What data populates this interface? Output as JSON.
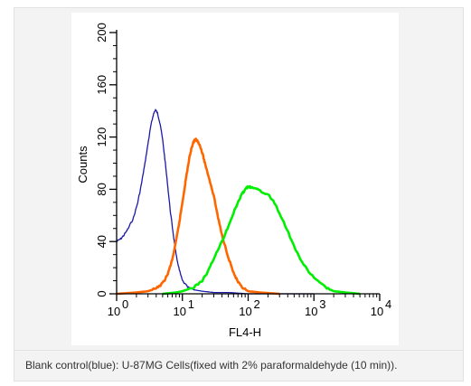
{
  "caption": "Blank control(blue): U-87MG Cells(fixed with 2% paraformaldehyde (10 min)).",
  "chart_data": {
    "type": "line",
    "title": "",
    "xlabel": "FL4-H",
    "ylabel": "Counts",
    "xscale": "log",
    "xlim": [
      1,
      10000
    ],
    "ylim": [
      0,
      200
    ],
    "grid": false,
    "legend": "none",
    "x_ticks": [
      {
        "base": "10",
        "exp": "0",
        "value": 1
      },
      {
        "base": "10",
        "exp": "1",
        "value": 10
      },
      {
        "base": "10",
        "exp": "2",
        "value": 100
      },
      {
        "base": "10",
        "exp": "3",
        "value": 1000
      },
      {
        "base": "10",
        "exp": "4",
        "value": 10000
      }
    ],
    "y_ticks": [
      "0",
      "40",
      "80",
      "120",
      "160",
      "200"
    ],
    "series": [
      {
        "color": "#1a1aa8",
        "points": [
          [
            1,
            40
          ],
          [
            1.15,
            42
          ],
          [
            1.3,
            45
          ],
          [
            1.5,
            50
          ],
          [
            1.8,
            58
          ],
          [
            2.1,
            70
          ],
          [
            2.4,
            85
          ],
          [
            2.7,
            100
          ],
          [
            3.0,
            115
          ],
          [
            3.3,
            128
          ],
          [
            3.6,
            137
          ],
          [
            3.9,
            141
          ],
          [
            4.2,
            138
          ],
          [
            4.6,
            130
          ],
          [
            5.0,
            118
          ],
          [
            5.5,
            100
          ],
          [
            6.0,
            82
          ],
          [
            6.6,
            62
          ],
          [
            7.3,
            45
          ],
          [
            8.0,
            30
          ],
          [
            9.0,
            18
          ],
          [
            10,
            10
          ],
          [
            12,
            5
          ],
          [
            15,
            3
          ],
          [
            20,
            2
          ],
          [
            30,
            1
          ],
          [
            50,
            1
          ],
          [
            100,
            0
          ],
          [
            300,
            0
          ],
          [
            1000,
            0
          ]
        ]
      },
      {
        "color": "#ff6600",
        "points": [
          [
            1,
            0
          ],
          [
            2,
            1
          ],
          [
            3,
            2
          ],
          [
            4,
            4
          ],
          [
            5,
            8
          ],
          [
            6,
            15
          ],
          [
            7,
            26
          ],
          [
            8,
            40
          ],
          [
            9,
            55
          ],
          [
            10,
            70
          ],
          [
            11,
            84
          ],
          [
            12,
            96
          ],
          [
            13,
            106
          ],
          [
            14,
            113
          ],
          [
            15,
            117
          ],
          [
            16,
            118
          ],
          [
            17,
            117
          ],
          [
            18,
            115
          ],
          [
            20,
            108
          ],
          [
            22,
            100
          ],
          [
            25,
            90
          ],
          [
            30,
            75
          ],
          [
            35,
            58
          ],
          [
            40,
            45
          ],
          [
            50,
            28
          ],
          [
            60,
            16
          ],
          [
            70,
            9
          ],
          [
            80,
            5
          ],
          [
            100,
            2
          ],
          [
            150,
            1
          ],
          [
            300,
            0
          ]
        ]
      },
      {
        "color": "#00ee00",
        "points": [
          [
            5,
            0
          ],
          [
            8,
            1
          ],
          [
            10,
            2
          ],
          [
            15,
            5
          ],
          [
            20,
            10
          ],
          [
            25,
            18
          ],
          [
            30,
            27
          ],
          [
            40,
            40
          ],
          [
            50,
            52
          ],
          [
            60,
            62
          ],
          [
            70,
            70
          ],
          [
            80,
            76
          ],
          [
            90,
            80
          ],
          [
            100,
            82
          ],
          [
            120,
            81
          ],
          [
            150,
            79
          ],
          [
            200,
            76
          ],
          [
            250,
            70
          ],
          [
            300,
            62
          ],
          [
            400,
            48
          ],
          [
            500,
            36
          ],
          [
            700,
            22
          ],
          [
            1000,
            12
          ],
          [
            1500,
            5
          ],
          [
            2000,
            2
          ],
          [
            3000,
            1
          ],
          [
            5000,
            0
          ]
        ]
      }
    ]
  }
}
